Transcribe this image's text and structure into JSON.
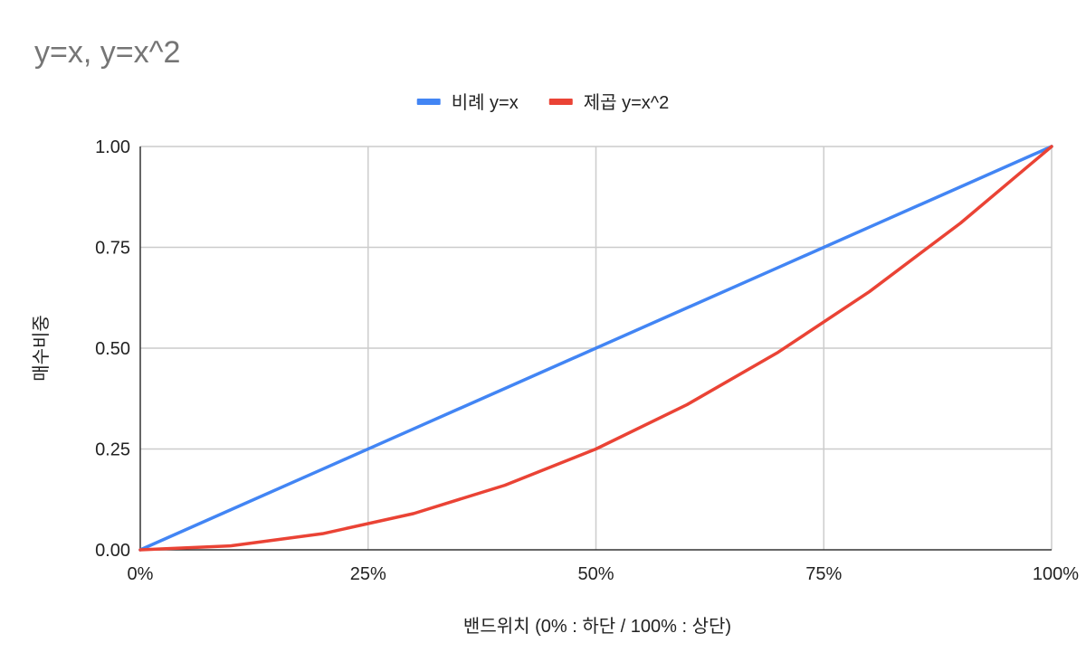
{
  "chart_data": {
    "type": "line",
    "title": "y=x, y=x^2",
    "xlabel": "밴드위치 (0% : 하단 / 100% : 상단)",
    "ylabel": "매수비중",
    "legend_position": "top",
    "grid": true,
    "x": [
      0,
      0.1,
      0.2,
      0.3,
      0.4,
      0.5,
      0.6,
      0.7,
      0.8,
      0.9,
      1.0
    ],
    "xlim": [
      0,
      1
    ],
    "ylim": [
      0,
      1
    ],
    "x_ticks": [
      {
        "value": 0,
        "label": "0%"
      },
      {
        "value": 0.25,
        "label": "25%"
      },
      {
        "value": 0.5,
        "label": "50%"
      },
      {
        "value": 0.75,
        "label": "75%"
      },
      {
        "value": 1,
        "label": "100%"
      }
    ],
    "y_ticks": [
      {
        "value": 0,
        "label": "0.00"
      },
      {
        "value": 0.25,
        "label": "0.25"
      },
      {
        "value": 0.5,
        "label": "0.50"
      },
      {
        "value": 0.75,
        "label": "0.75"
      },
      {
        "value": 1,
        "label": "1.00"
      }
    ],
    "series": [
      {
        "name": "비례 y=x",
        "color": "#4285f4",
        "values": [
          0,
          0.1,
          0.2,
          0.3,
          0.4,
          0.5,
          0.6,
          0.7,
          0.8,
          0.9,
          1.0
        ]
      },
      {
        "name": "제곱 y=x^2",
        "color": "#ea4335",
        "values": [
          0,
          0.01,
          0.04,
          0.09,
          0.16,
          0.25,
          0.36,
          0.49,
          0.64,
          0.81,
          1.0
        ]
      }
    ]
  }
}
